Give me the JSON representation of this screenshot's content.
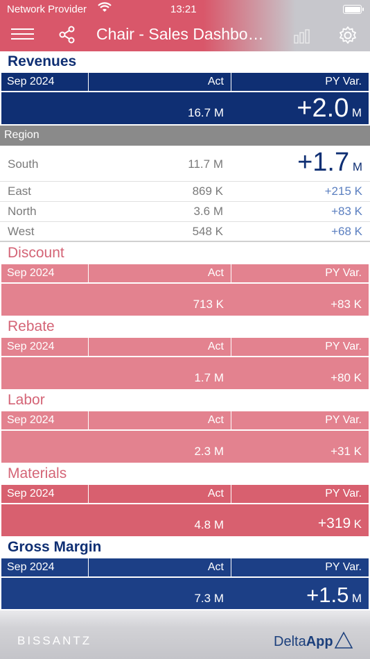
{
  "status_bar": {
    "carrier": "Network Provider",
    "time": "13:21"
  },
  "nav": {
    "title": "Chair - Sales Dashbo…"
  },
  "revenues": {
    "title": "Revenues",
    "period": "Sep 2024",
    "act_label": "Act",
    "var_label": "PY Var.",
    "act_value": "16.7 M",
    "var_value": "+2.0",
    "var_unit": "M"
  },
  "region": {
    "label": "Region",
    "rows": [
      {
        "name": "South",
        "act": "11.7 M",
        "var": "+1.7",
        "unit": "M"
      },
      {
        "name": "East",
        "act": "869 K",
        "var": "+215",
        "unit": "K"
      },
      {
        "name": "North",
        "act": "3.6 M",
        "var": "+83",
        "unit": "K"
      },
      {
        "name": "West",
        "act": "548 K",
        "var": "+68",
        "unit": "K"
      }
    ]
  },
  "discount": {
    "title": "Discount",
    "period": "Sep 2024",
    "act_label": "Act",
    "var_label": "PY Var.",
    "act_value": "713 K",
    "var_value": "+83",
    "var_unit": "K"
  },
  "rebate": {
    "title": "Rebate",
    "period": "Sep 2024",
    "act_label": "Act",
    "var_label": "PY Var.",
    "act_value": "1.7 M",
    "var_value": "+80",
    "var_unit": "K"
  },
  "labor": {
    "title": "Labor",
    "period": "Sep 2024",
    "act_label": "Act",
    "var_label": "PY Var.",
    "act_value": "2.3 M",
    "var_value": "+31",
    "var_unit": "K"
  },
  "materials": {
    "title": "Materials",
    "period": "Sep 2024",
    "act_label": "Act",
    "var_label": "PY Var.",
    "act_value": "4.8 M",
    "var_value": "+319",
    "var_unit": "K"
  },
  "gross_margin": {
    "title": "Gross Margin",
    "period": "Sep 2024",
    "act_label": "Act",
    "var_label": "PY Var.",
    "act_value": "7.3 M",
    "var_value": "+1.5",
    "var_unit": "M"
  },
  "footer": {
    "brand": "BISSANTZ",
    "app_prefix": "Delta",
    "app_suffix": "App"
  },
  "colors": {
    "navy": "#0f2f73",
    "navy_mid": "#1c3f86",
    "pink_title": "#d46476",
    "pink_light": "#e3828f",
    "pink_mid": "#df7381",
    "pink_dark": "#d8606f",
    "region_var": "#5b7fc0"
  }
}
